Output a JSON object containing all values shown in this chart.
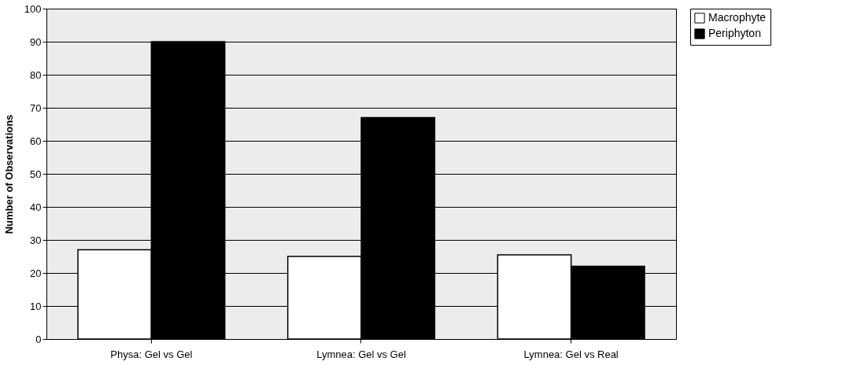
{
  "chart_data": {
    "type": "bar",
    "ylabel": "Number of Observations",
    "categories": [
      "Physa: Gel vs Gel",
      "Lymnea: Gel vs Gel",
      "Lymnea: Gel vs Real"
    ],
    "series": [
      {
        "name": "Macrophyte",
        "color": "#ffffff",
        "values": [
          27,
          25,
          25.5
        ]
      },
      {
        "name": "Periphyton",
        "color": "#000000",
        "values": [
          90,
          67,
          22
        ]
      }
    ],
    "ylim": [
      0,
      100
    ],
    "yticks": [
      0,
      10,
      20,
      30,
      40,
      50,
      60,
      70,
      80,
      90,
      100
    ],
    "grid": "y",
    "legend": "right"
  }
}
